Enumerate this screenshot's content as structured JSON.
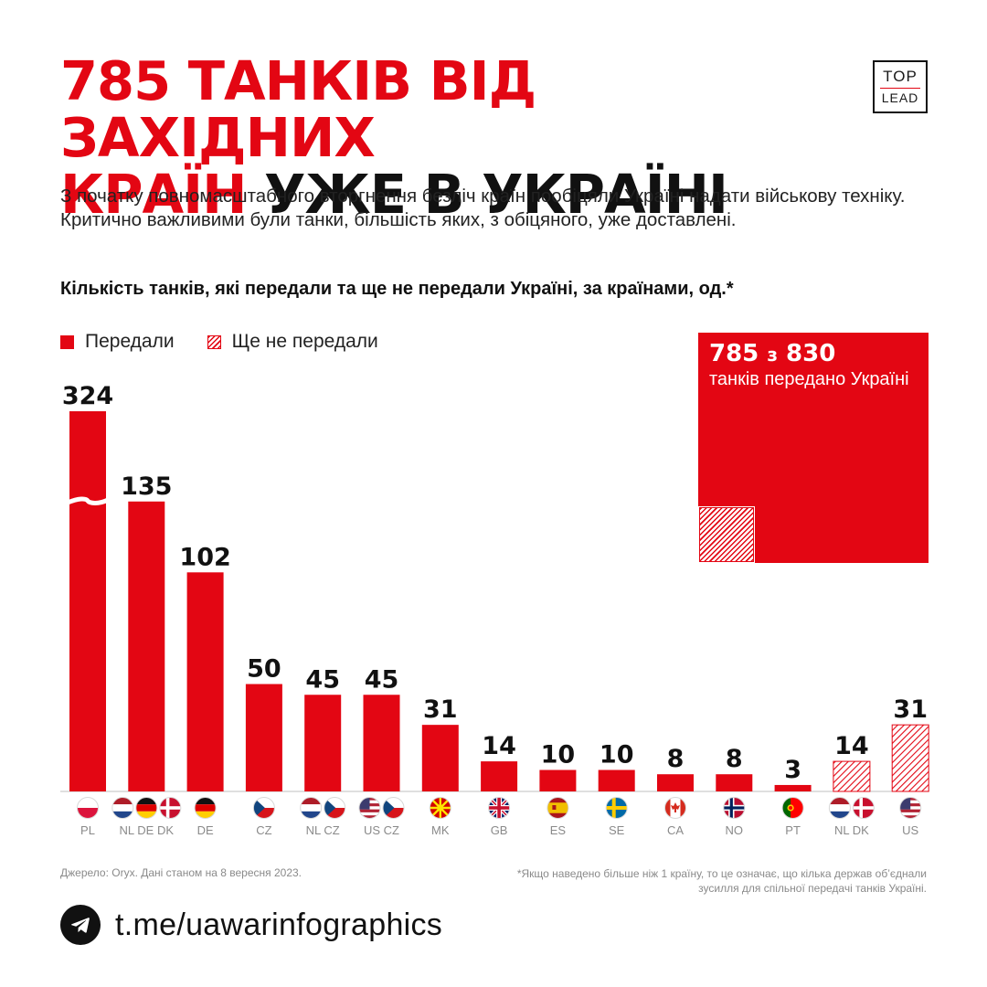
{
  "title": {
    "line1_red": "785 танків від західних",
    "line2_red": "країн",
    "line2_black": "уже в Україні"
  },
  "logo": {
    "top": "TOP",
    "bottom": "LEAD"
  },
  "lead": "З початку повномасштабного вторгнення безліч країн пообіцяли Україні надати військову техніку. Критично важливими були танки, більшість яких, з обіцяного, уже доставлені.",
  "subtitle": "Кількість танків, які передали та ще не передали Україні, за країнами, од.*",
  "legend": {
    "delivered": "Передали",
    "not_delivered": "Ще не передали"
  },
  "total": {
    "delivered": "785",
    "connector": "з",
    "promised": "830",
    "caption": "танків передано Україні"
  },
  "chart_data": {
    "type": "bar",
    "title": "Кількість танків, які передали та ще не передали Україні, за країнами, од.*",
    "xlabel": "",
    "ylabel": "",
    "broken_axis_bar": 0,
    "bars": [
      {
        "value": 324,
        "status": "delivered",
        "flags": [
          "PL"
        ],
        "label": "PL"
      },
      {
        "value": 135,
        "status": "delivered",
        "flags": [
          "NL",
          "DE",
          "DK"
        ],
        "label": "NL DE DK"
      },
      {
        "value": 102,
        "status": "delivered",
        "flags": [
          "DE"
        ],
        "label": "DE"
      },
      {
        "value": 50,
        "status": "delivered",
        "flags": [
          "CZ"
        ],
        "label": "CZ"
      },
      {
        "value": 45,
        "status": "delivered",
        "flags": [
          "NL",
          "CZ"
        ],
        "label": "NL CZ"
      },
      {
        "value": 45,
        "status": "delivered",
        "flags": [
          "US",
          "CZ"
        ],
        "label": "US CZ"
      },
      {
        "value": 31,
        "status": "delivered",
        "flags": [
          "MK"
        ],
        "label": "MK"
      },
      {
        "value": 14,
        "status": "delivered",
        "flags": [
          "GB"
        ],
        "label": "GB"
      },
      {
        "value": 10,
        "status": "delivered",
        "flags": [
          "ES"
        ],
        "label": "ES"
      },
      {
        "value": 10,
        "status": "delivered",
        "flags": [
          "SE"
        ],
        "label": "SE"
      },
      {
        "value": 8,
        "status": "delivered",
        "flags": [
          "CA"
        ],
        "label": "CA"
      },
      {
        "value": 8,
        "status": "delivered",
        "flags": [
          "NO"
        ],
        "label": "NO"
      },
      {
        "value": 3,
        "status": "delivered",
        "flags": [
          "PT"
        ],
        "label": "PT"
      },
      {
        "value": 14,
        "status": "not_delivered",
        "flags": [
          "NL",
          "DK"
        ],
        "label": "NL DK"
      },
      {
        "value": 31,
        "status": "not_delivered",
        "flags": [
          "US"
        ],
        "label": "US"
      }
    ]
  },
  "colors": {
    "accent": "#e30613",
    "text": "#111111",
    "muted": "#8a8a8a"
  },
  "source": "Джерело: Oryx. Дані станом на 8 вересня 2023.",
  "note": "*Якщо наведено більше ніж 1 країну, то це означає, що кілька держав об’єднали зусилля для спільної передачі танків Україні.",
  "telegram": {
    "icon": "telegram-icon",
    "link": "t.me/uawarinfographics"
  }
}
